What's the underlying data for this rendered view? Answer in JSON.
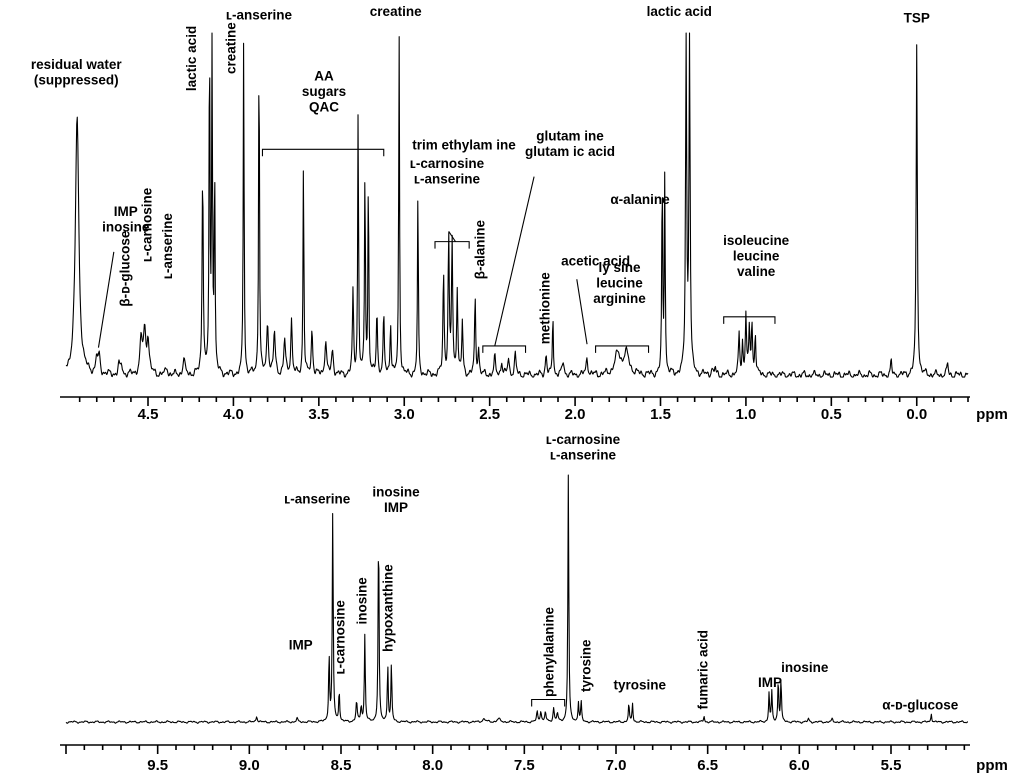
{
  "chart_data": [
    {
      "type": "line",
      "x_unit": "ppm",
      "xlim": [
        4.98,
        -0.3
      ],
      "x_reversed": true,
      "xticks": [
        "4.5",
        "4.0",
        "3.5",
        "3.0",
        "2.5",
        "2.0",
        "1.5",
        "1.0",
        "0.5",
        "0.0"
      ],
      "series_shape": "1H NMR spectrum",
      "peaks": [
        {
          "x": 4.915,
          "y": 0.76,
          "w": 0.012
        },
        {
          "x": 4.8,
          "y": 0.05,
          "w": 0.006
        },
        {
          "x": 4.785,
          "y": 0.05,
          "w": 0.006
        },
        {
          "x": 4.67,
          "y": 0.03,
          "w": 0.005
        },
        {
          "x": 4.655,
          "y": 0.03,
          "w": 0.005
        },
        {
          "x": 4.54,
          "y": 0.1,
          "w": 0.008
        },
        {
          "x": 4.52,
          "y": 0.12,
          "w": 0.008
        },
        {
          "x": 4.5,
          "y": 0.1,
          "w": 0.008
        },
        {
          "x": 4.39,
          "y": 0.02,
          "w": 0.006
        },
        {
          "x": 4.29,
          "y": 0.05,
          "w": 0.006
        },
        {
          "x": 4.18,
          "y": 0.6,
          "w": 0.004
        },
        {
          "x": 4.14,
          "y": 1.0,
          "w": 0.003
        },
        {
          "x": 4.125,
          "y": 1.0,
          "w": 0.003
        },
        {
          "x": 4.11,
          "y": 0.6,
          "w": 0.003
        },
        {
          "x": 3.94,
          "y": 1.0,
          "w": 0.003
        },
        {
          "x": 3.85,
          "y": 1.0,
          "w": 0.003
        },
        {
          "x": 3.8,
          "y": 0.15,
          "w": 0.006
        },
        {
          "x": 3.76,
          "y": 0.12,
          "w": 0.006
        },
        {
          "x": 3.7,
          "y": 0.1,
          "w": 0.006
        },
        {
          "x": 3.66,
          "y": 0.16,
          "w": 0.005
        },
        {
          "x": 3.59,
          "y": 0.63,
          "w": 0.003
        },
        {
          "x": 3.54,
          "y": 0.13,
          "w": 0.005
        },
        {
          "x": 3.46,
          "y": 0.1,
          "w": 0.006
        },
        {
          "x": 3.42,
          "y": 0.07,
          "w": 0.006
        },
        {
          "x": 3.3,
          "y": 0.24,
          "w": 0.004
        },
        {
          "x": 3.27,
          "y": 0.78,
          "w": 0.003
        },
        {
          "x": 3.23,
          "y": 0.61,
          "w": 0.003
        },
        {
          "x": 3.21,
          "y": 0.58,
          "w": 0.003
        },
        {
          "x": 3.16,
          "y": 0.19,
          "w": 0.004
        },
        {
          "x": 3.12,
          "y": 0.17,
          "w": 0.004
        },
        {
          "x": 3.08,
          "y": 0.15,
          "w": 0.004
        },
        {
          "x": 3.03,
          "y": 1.0,
          "w": 0.003
        },
        {
          "x": 2.92,
          "y": 0.53,
          "w": 0.003
        },
        {
          "x": 2.77,
          "y": 0.3,
          "w": 0.004
        },
        {
          "x": 2.74,
          "y": 0.4,
          "w": 0.004
        },
        {
          "x": 2.72,
          "y": 0.39,
          "w": 0.004
        },
        {
          "x": 2.69,
          "y": 0.25,
          "w": 0.004
        },
        {
          "x": 2.66,
          "y": 0.15,
          "w": 0.004
        },
        {
          "x": 2.585,
          "y": 0.22,
          "w": 0.004
        },
        {
          "x": 2.565,
          "y": 0.08,
          "w": 0.004
        },
        {
          "x": 2.47,
          "y": 0.05,
          "w": 0.005
        },
        {
          "x": 2.43,
          "y": 0.04,
          "w": 0.005
        },
        {
          "x": 2.39,
          "y": 0.05,
          "w": 0.005
        },
        {
          "x": 2.35,
          "y": 0.06,
          "w": 0.005
        },
        {
          "x": 2.13,
          "y": 0.19,
          "w": 0.003
        },
        {
          "x": 2.17,
          "y": 0.06,
          "w": 0.005
        },
        {
          "x": 2.07,
          "y": 0.04,
          "w": 0.006
        },
        {
          "x": 1.93,
          "y": 0.05,
          "w": 0.006
        },
        {
          "x": 1.75,
          "y": 0.06,
          "w": 0.02
        },
        {
          "x": 1.7,
          "y": 0.06,
          "w": 0.02
        },
        {
          "x": 1.49,
          "y": 0.59,
          "w": 0.003
        },
        {
          "x": 1.475,
          "y": 0.59,
          "w": 0.003
        },
        {
          "x": 1.35,
          "y": 0.99,
          "w": 0.004
        },
        {
          "x": 1.33,
          "y": 0.99,
          "w": 0.004
        },
        {
          "x": 1.2,
          "y": 0.02,
          "w": 0.004
        },
        {
          "x": 1.18,
          "y": 0.02,
          "w": 0.004
        },
        {
          "x": 1.04,
          "y": 0.12,
          "w": 0.004
        },
        {
          "x": 1.02,
          "y": 0.09,
          "w": 0.004
        },
        {
          "x": 1.0,
          "y": 0.18,
          "w": 0.004
        },
        {
          "x": 0.98,
          "y": 0.13,
          "w": 0.004
        },
        {
          "x": 0.965,
          "y": 0.15,
          "w": 0.004
        },
        {
          "x": 0.945,
          "y": 0.12,
          "w": 0.004
        },
        {
          "x": 0.15,
          "y": 0.04,
          "w": 0.004
        },
        {
          "x": 0.0,
          "y": 0.97,
          "w": 0.004
        },
        {
          "x": -0.18,
          "y": 0.035,
          "w": 0.004
        }
      ],
      "labels": [
        {
          "lines": [
            "residual water",
            "(suppressed)"
          ],
          "x": 4.92,
          "y": 0.85,
          "rot": 0
        },
        {
          "lines": [
            "IMP",
            "inosine"
          ],
          "x": 4.63,
          "y": 0.42,
          "rot": 0
        },
        {
          "lines": [
            "β-ᴅ-glucose"
          ],
          "x": 4.63,
          "y": 0.2,
          "rot": -90
        },
        {
          "lines": [
            "ʟ-carnosine"
          ],
          "x": 4.5,
          "y": 0.33,
          "rot": -90
        },
        {
          "lines": [
            "ʟ-anserine"
          ],
          "x": 4.38,
          "y": 0.28,
          "rot": -90
        },
        {
          "lines": [
            "lactic acid"
          ],
          "x": 4.24,
          "y": 0.83,
          "rot": -90
        },
        {
          "lines": [
            "creatine"
          ],
          "x": 4.01,
          "y": 0.88,
          "rot": -90
        },
        {
          "lines": [
            "ʟ-anserine"
          ],
          "x": 3.85,
          "y": 1.04,
          "rot": 0
        },
        {
          "lines": [
            "AA",
            "sugars",
            "QAC"
          ],
          "x": 3.47,
          "y": 0.77,
          "rot": 0
        },
        {
          "lines": [
            "creatine"
          ],
          "x": 3.05,
          "y": 1.05,
          "rot": 0
        },
        {
          "lines": [
            "trim ethylam ine"
          ],
          "x": 2.65,
          "y": 0.66,
          "rot": 0
        },
        {
          "lines": [
            "ʟ-carnosine",
            "ʟ-anserine"
          ],
          "x": 2.75,
          "y": 0.56,
          "rot": 0
        },
        {
          "lines": [
            "β-alanine"
          ],
          "x": 2.55,
          "y": 0.28,
          "rot": -90
        },
        {
          "lines": [
            "glutam ine",
            "glutam ic acid"
          ],
          "x": 2.03,
          "y": 0.64,
          "rot": 0
        },
        {
          "lines": [
            "methionine"
          ],
          "x": 2.17,
          "y": 0.09,
          "rot": -90
        },
        {
          "lines": [
            "acetic acid"
          ],
          "x": 1.88,
          "y": 0.32,
          "rot": 0
        },
        {
          "lines": [
            "ly sine",
            "leucine",
            "arginine"
          ],
          "x": 1.74,
          "y": 0.21,
          "rot": 0
        },
        {
          "lines": [
            "α-alanine"
          ],
          "x": 1.62,
          "y": 0.5,
          "rot": 0
        },
        {
          "lines": [
            "lactic acid"
          ],
          "x": 1.39,
          "y": 1.05,
          "rot": 0
        },
        {
          "lines": [
            "isoleucine",
            "leucine",
            "valine"
          ],
          "x": 0.94,
          "y": 0.29,
          "rot": 0
        },
        {
          "lines": [
            "TSP"
          ],
          "x": 0.0,
          "y": 1.03,
          "rot": 0
        }
      ],
      "brackets": [
        {
          "x1": 3.83,
          "x2": 3.12,
          "y": 0.66
        },
        {
          "x1": 2.82,
          "x2": 2.62,
          "y": 0.39
        },
        {
          "x1": 2.54,
          "x2": 2.29,
          "y": 0.085
        },
        {
          "x1": 1.88,
          "x2": 1.57,
          "y": 0.085
        },
        {
          "x1": 1.13,
          "x2": 0.83,
          "y": 0.17
        }
      ],
      "leaders": [
        {
          "x1": 4.7,
          "y1": 0.36,
          "x2": 4.79,
          "y2": 0.08
        },
        {
          "x1": 2.7,
          "y1": 0.39,
          "x2": 2.74,
          "y2": 0.42
        },
        {
          "x1": 2.24,
          "y1": 0.58,
          "x2": 2.47,
          "y2": 0.085
        },
        {
          "x1": 1.99,
          "y1": 0.28,
          "x2": 1.93,
          "y2": 0.09
        }
      ]
    },
    {
      "type": "line",
      "x_unit": "ppm",
      "xlim": [
        10.0,
        5.08
      ],
      "x_reversed": true,
      "xticks": [
        "9.5",
        "9.0",
        "8.5",
        "8.0",
        "7.5",
        "7.0",
        "6.5",
        "6.0",
        "5.5"
      ],
      "series_shape": "1H NMR spectrum",
      "peaks": [
        {
          "x": 8.96,
          "y": 0.025,
          "w": 0.004
        },
        {
          "x": 8.74,
          "y": 0.015,
          "w": 0.004
        },
        {
          "x": 8.565,
          "y": 0.27,
          "w": 0.003
        },
        {
          "x": 8.545,
          "y": 0.85,
          "w": 0.003
        },
        {
          "x": 8.51,
          "y": 0.13,
          "w": 0.003
        },
        {
          "x": 8.415,
          "y": 0.08,
          "w": 0.004
        },
        {
          "x": 8.39,
          "y": 0.06,
          "w": 0.004
        },
        {
          "x": 8.37,
          "y": 0.35,
          "w": 0.003
        },
        {
          "x": 8.295,
          "y": 0.79,
          "w": 0.003
        },
        {
          "x": 8.245,
          "y": 0.23,
          "w": 0.003
        },
        {
          "x": 8.225,
          "y": 0.23,
          "w": 0.003
        },
        {
          "x": 7.72,
          "y": 0.012,
          "w": 0.01
        },
        {
          "x": 7.64,
          "y": 0.012,
          "w": 0.01
        },
        {
          "x": 7.43,
          "y": 0.04,
          "w": 0.004
        },
        {
          "x": 7.41,
          "y": 0.045,
          "w": 0.004
        },
        {
          "x": 7.385,
          "y": 0.04,
          "w": 0.004
        },
        {
          "x": 7.34,
          "y": 0.055,
          "w": 0.004
        },
        {
          "x": 7.32,
          "y": 0.035,
          "w": 0.004
        },
        {
          "x": 7.26,
          "y": 0.99,
          "w": 0.003
        },
        {
          "x": 7.205,
          "y": 0.08,
          "w": 0.003
        },
        {
          "x": 7.19,
          "y": 0.08,
          "w": 0.003
        },
        {
          "x": 6.93,
          "y": 0.075,
          "w": 0.003
        },
        {
          "x": 6.91,
          "y": 0.075,
          "w": 0.003
        },
        {
          "x": 6.52,
          "y": 0.025,
          "w": 0.003
        },
        {
          "x": 6.165,
          "y": 0.12,
          "w": 0.003
        },
        {
          "x": 6.15,
          "y": 0.12,
          "w": 0.003
        },
        {
          "x": 6.115,
          "y": 0.17,
          "w": 0.003
        },
        {
          "x": 6.1,
          "y": 0.17,
          "w": 0.003
        },
        {
          "x": 5.95,
          "y": 0.012,
          "w": 0.004
        },
        {
          "x": 5.82,
          "y": 0.012,
          "w": 0.004
        },
        {
          "x": 5.28,
          "y": 0.035,
          "w": 0.003
        }
      ],
      "labels": [
        {
          "lines": [
            "ʟ-anserine"
          ],
          "x": 8.63,
          "y": 0.875,
          "rot": 0
        },
        {
          "lines": [
            "IMP"
          ],
          "x": 8.72,
          "y": 0.29,
          "rot": 0
        },
        {
          "lines": [
            "ʟ-carnosine"
          ],
          "x": 8.5,
          "y": 0.19,
          "rot": -90
        },
        {
          "lines": [
            "inosine"
          ],
          "x": 8.38,
          "y": 0.39,
          "rot": -90
        },
        {
          "lines": [
            "inosine",
            "IMP"
          ],
          "x": 8.2,
          "y": 0.84,
          "rot": 0
        },
        {
          "lines": [
            "hypoxanthine"
          ],
          "x": 8.24,
          "y": 0.28,
          "rot": -90
        },
        {
          "lines": [
            "phenylalanine"
          ],
          "x": 7.36,
          "y": 0.1,
          "rot": -90
        },
        {
          "lines": [
            "ʟ-carnosine",
            "ʟ-anserine"
          ],
          "x": 7.18,
          "y": 1.05,
          "rot": 0
        },
        {
          "lines": [
            "tyrosine"
          ],
          "x": 7.16,
          "y": 0.12,
          "rot": -90
        },
        {
          "lines": [
            "tyrosine"
          ],
          "x": 6.87,
          "y": 0.13,
          "rot": 0
        },
        {
          "lines": [
            "fumaric acid"
          ],
          "x": 6.52,
          "y": 0.05,
          "rot": -90
        },
        {
          "lines": [
            "IMP"
          ],
          "x": 6.16,
          "y": 0.14,
          "rot": 0
        },
        {
          "lines": [
            "inosine"
          ],
          "x": 5.97,
          "y": 0.2,
          "rot": 0
        },
        {
          "lines": [
            "α-ᴅ-glucose"
          ],
          "x": 5.34,
          "y": 0.05,
          "rot": 0
        }
      ],
      "brackets": [
        {
          "x1": 7.46,
          "x2": 7.28,
          "y": 0.09
        }
      ],
      "leaders": []
    }
  ]
}
